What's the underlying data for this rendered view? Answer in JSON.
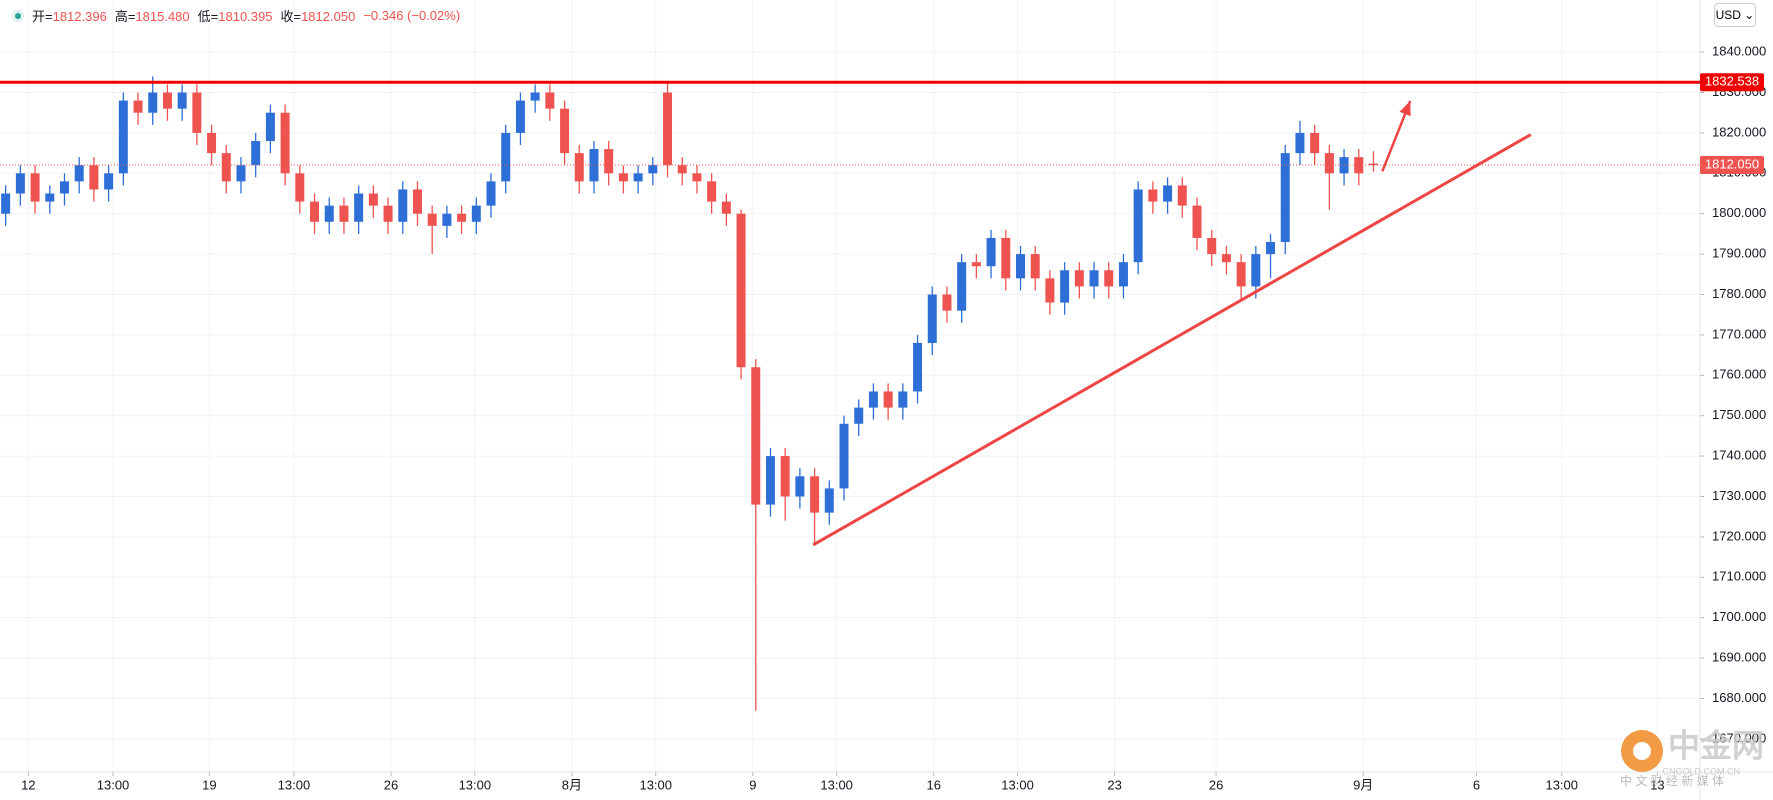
{
  "chart_data": {
    "type": "candlestick",
    "header": [
      {
        "label": "开=",
        "value": "1812.396"
      },
      {
        "label": "高=",
        "value": "1815.480"
      },
      {
        "label": "低=",
        "value": "1810.395"
      },
      {
        "label": "收=",
        "value": "1812.050"
      }
    ],
    "change": "−0.346 (−0.02%)",
    "currency": "USD",
    "up_color": "#2d6fd6",
    "down_color": "#ef5350",
    "open": [
      1800,
      1805,
      1810,
      1803,
      1805,
      1808,
      1812,
      1806,
      1810,
      1828,
      1825,
      1830,
      1826,
      1830,
      1820,
      1815,
      1808,
      1812,
      1818,
      1825,
      1810,
      1803,
      1798,
      1802,
      1798,
      1805,
      1802,
      1798,
      1806,
      1800,
      1797,
      1800,
      1798,
      1802,
      1808,
      1820,
      1828,
      1830,
      1826,
      1815,
      1808,
      1816,
      1810,
      1808,
      1810,
      1830,
      1812,
      1810,
      1808,
      1803,
      1800,
      1762,
      1728,
      1740,
      1730,
      1735,
      1726,
      1732,
      1748,
      1752,
      1756,
      1752,
      1756,
      1768,
      1780,
      1776,
      1788,
      1787,
      1794,
      1784,
      1790,
      1784,
      1778,
      1786,
      1782,
      1786,
      1782,
      1788,
      1806,
      1803,
      1807,
      1802,
      1794,
      1790,
      1788,
      1782,
      1790,
      1793,
      1815,
      1820,
      1815,
      1810,
      1814,
      1812.396
    ],
    "high": [
      1807,
      1812,
      1812,
      1807,
      1810,
      1814,
      1814,
      1812,
      1830,
      1830,
      1834,
      1832,
      1832,
      1832,
      1822,
      1817,
      1814,
      1820,
      1827,
      1827,
      1812,
      1805,
      1804,
      1804,
      1807,
      1807,
      1804,
      1808,
      1808,
      1802,
      1802,
      1802,
      1804,
      1810,
      1822,
      1830,
      1832,
      1832,
      1828,
      1817,
      1818,
      1818,
      1812,
      1812,
      1814,
      1832.5,
      1814,
      1812,
      1810,
      1805,
      1801,
      1764,
      1742,
      1742,
      1737,
      1737,
      1734,
      1750,
      1754,
      1758,
      1758,
      1758,
      1770,
      1782,
      1782,
      1790,
      1790,
      1796,
      1796,
      1792,
      1792,
      1786,
      1788,
      1788,
      1788,
      1788,
      1790,
      1808,
      1808,
      1809,
      1809,
      1804,
      1796,
      1792,
      1790,
      1792,
      1795,
      1817,
      1823,
      1822,
      1817,
      1816,
      1816,
      1815.48
    ],
    "low": [
      1797,
      1802,
      1800,
      1800,
      1802,
      1805,
      1803,
      1803,
      1807,
      1822,
      1822,
      1823,
      1823,
      1817,
      1812,
      1805,
      1805,
      1809,
      1815,
      1807,
      1800,
      1795,
      1795,
      1795,
      1795,
      1799,
      1795,
      1795,
      1797,
      1790,
      1794,
      1795,
      1795,
      1799,
      1805,
      1817,
      1825,
      1823,
      1812,
      1805,
      1805,
      1807,
      1805,
      1805,
      1807,
      1809,
      1807,
      1805,
      1800,
      1797,
      1759,
      1677,
      1725,
      1724,
      1727,
      1718,
      1723,
      1729,
      1745,
      1749,
      1749,
      1749,
      1753,
      1765,
      1773,
      1773,
      1784,
      1784,
      1781,
      1781,
      1781,
      1775,
      1775,
      1779,
      1779,
      1779,
      1779,
      1785,
      1800,
      1800,
      1799,
      1791,
      1787,
      1785,
      1779,
      1779,
      1784,
      1790,
      1812,
      1812,
      1801,
      1807,
      1807,
      1810.395
    ],
    "close": [
      1805,
      1810,
      1803,
      1805,
      1808,
      1812,
      1806,
      1810,
      1828,
      1825,
      1830,
      1826,
      1830,
      1820,
      1815,
      1808,
      1812,
      1818,
      1825,
      1810,
      1803,
      1798,
      1802,
      1798,
      1805,
      1802,
      1798,
      1806,
      1800,
      1797,
      1800,
      1798,
      1802,
      1808,
      1820,
      1828,
      1830,
      1826,
      1815,
      1808,
      1816,
      1810,
      1808,
      1810,
      1812,
      1812,
      1810,
      1808,
      1803,
      1800,
      1762,
      1728,
      1740,
      1730,
      1735,
      1726,
      1732,
      1748,
      1752,
      1756,
      1752,
      1756,
      1768,
      1780,
      1776,
      1788,
      1787,
      1794,
      1784,
      1790,
      1784,
      1778,
      1786,
      1782,
      1786,
      1782,
      1788,
      1806,
      1803,
      1807,
      1802,
      1794,
      1790,
      1788,
      1782,
      1790,
      1793,
      1815,
      1820,
      1815,
      1810,
      1814,
      1810,
      1812.05
    ],
    "xlim": [
      -0.385,
      115.2
    ],
    "xticks": [
      {
        "value": 1.54,
        "label": "12"
      },
      {
        "value": 7.3,
        "label": "13:00"
      },
      {
        "value": 13.85,
        "label": "19"
      },
      {
        "value": 19.6,
        "label": "13:00"
      },
      {
        "value": 26.2,
        "label": "26"
      },
      {
        "value": 31.9,
        "label": "13:00"
      },
      {
        "value": 38.5,
        "label": "8月"
      },
      {
        "value": 44.2,
        "label": "13:00"
      },
      {
        "value": 50.8,
        "label": "9"
      },
      {
        "value": 56.5,
        "label": "13:00"
      },
      {
        "value": 63.1,
        "label": "16"
      },
      {
        "value": 68.8,
        "label": "13:00"
      },
      {
        "value": 75.4,
        "label": "23"
      },
      {
        "value": 82.3,
        "label": "26"
      },
      {
        "value": 92.3,
        "label": "9月"
      },
      {
        "value": 100,
        "label": "6"
      },
      {
        "value": 105.8,
        "label": "13:00"
      },
      {
        "value": 112.3,
        "label": "13"
      }
    ],
    "ylim": [
      1661.8,
      1852.9
    ],
    "yticks": [
      {
        "value": 1670,
        "label": "1670.000"
      },
      {
        "value": 1680,
        "label": "1680.000"
      },
      {
        "value": 1690,
        "label": "1690.000"
      },
      {
        "value": 1700,
        "label": "1700.000"
      },
      {
        "value": 1710,
        "label": "1710.000"
      },
      {
        "value": 1720,
        "label": "1720.000"
      },
      {
        "value": 1730,
        "label": "1730.000"
      },
      {
        "value": 1740,
        "label": "1740.000"
      },
      {
        "value": 1750,
        "label": "1750.000"
      },
      {
        "value": 1760,
        "label": "1760.000"
      },
      {
        "value": 1770,
        "label": "1770.000"
      },
      {
        "value": 1780,
        "label": "1780.000"
      },
      {
        "value": 1790,
        "label": "1790.000"
      },
      {
        "value": 1800,
        "label": "1800.000"
      },
      {
        "value": 1810,
        "label": "1810.000"
      },
      {
        "value": 1820,
        "label": "1820.000"
      },
      {
        "value": 1830,
        "label": "1830.000"
      },
      {
        "value": 1840,
        "label": "1840.000"
      }
    ],
    "grid": true,
    "resistance": {
      "value": 1832.538,
      "label": "1832.538",
      "color": "#f00000"
    },
    "last_price": {
      "value": 1812.05,
      "label": "1812.050",
      "color": "#ef5350"
    },
    "trendline": {
      "x": [
        54.9,
        103.7
      ],
      "y": [
        1718,
        1819.6
      ],
      "color": "#ef4444"
    },
    "arrow": {
      "x": [
        93.6,
        95.5
      ],
      "y": [
        1810.5,
        1827.9
      ],
      "color": "#ef4444"
    },
    "watermark": {
      "brand": "中金网",
      "site": "CNGOLD.COM.CN",
      "slogan": "中 文 财 经 新 媒 体"
    }
  }
}
